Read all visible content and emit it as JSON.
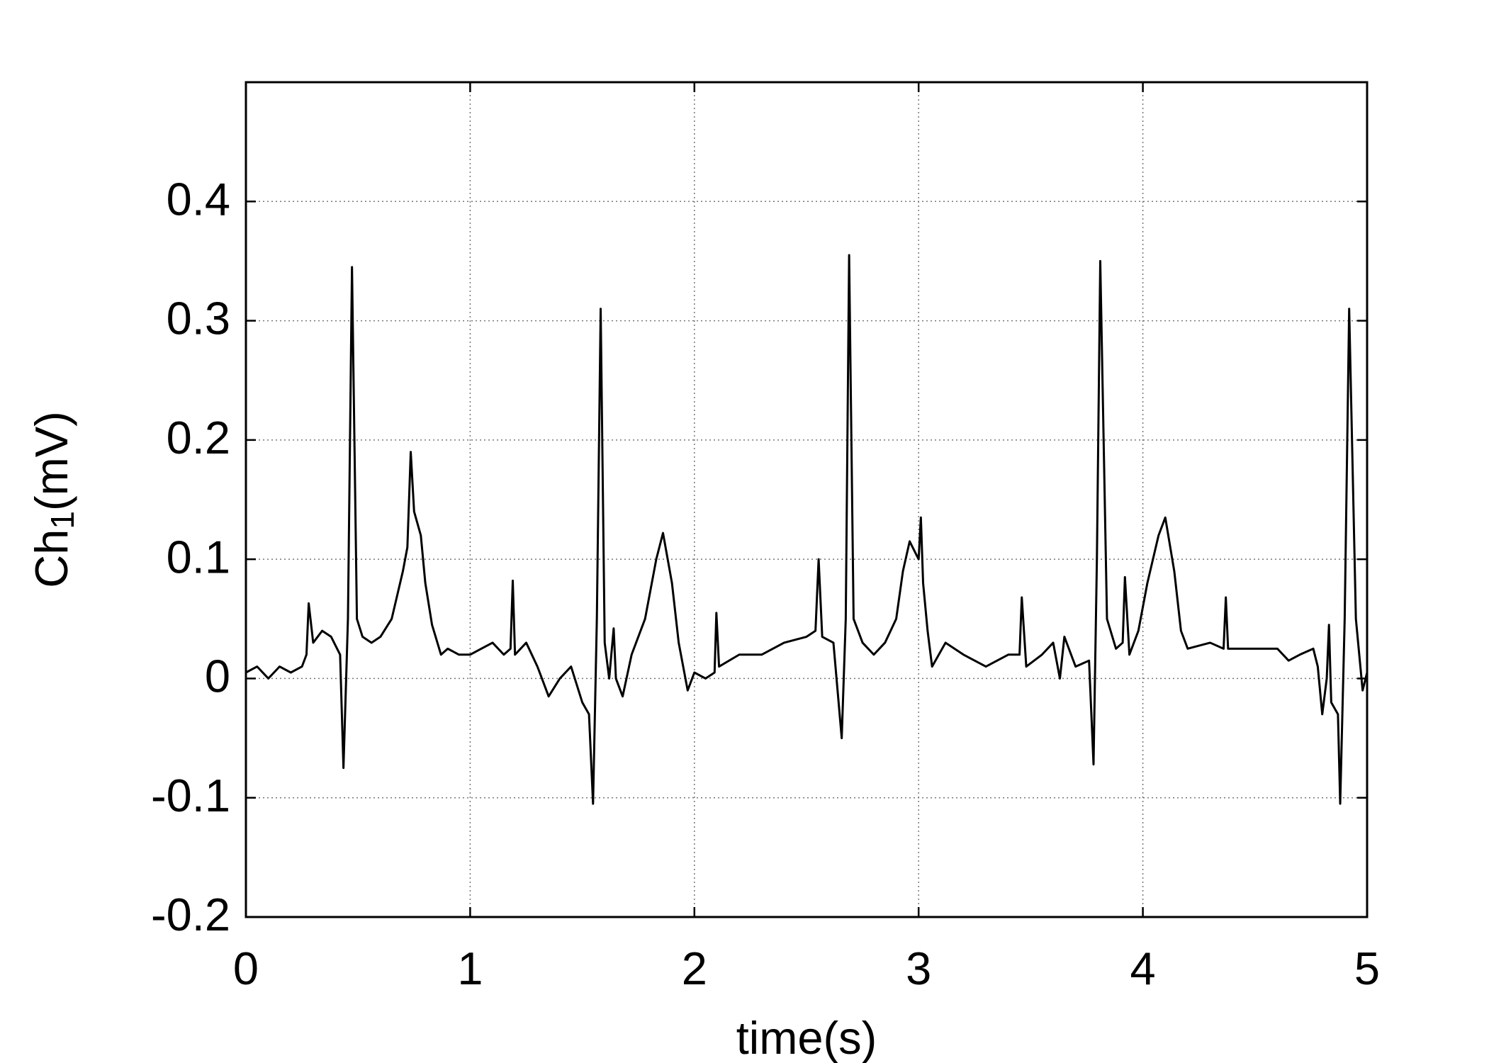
{
  "chart_data": {
    "type": "line",
    "xlabel": "time(s)",
    "ylabel": [
      "Ch",
      "1",
      "(mV)"
    ],
    "color": "#000000",
    "grid": true,
    "xlim": [
      0,
      5
    ],
    "xticks": [
      0,
      1,
      2,
      3,
      4,
      5
    ],
    "ylim": [
      -0.2,
      0.5
    ],
    "yticks": [
      -0.2,
      -0.1,
      0,
      0.1,
      0.2,
      0.3,
      0.4
    ],
    "x": [
      0,
      0.05,
      0.1,
      0.15,
      0.2,
      0.25,
      0.27,
      0.28,
      0.3,
      0.34,
      0.38,
      0.42,
      0.435,
      0.455,
      0.473,
      0.495,
      0.52,
      0.56,
      0.6,
      0.65,
      0.7,
      0.72,
      0.735,
      0.75,
      0.78,
      0.8,
      0.83,
      0.87,
      0.9,
      0.95,
      1.0,
      1.05,
      1.1,
      1.15,
      1.18,
      1.19,
      1.2,
      1.25,
      1.3,
      1.35,
      1.4,
      1.45,
      1.5,
      1.53,
      1.548,
      1.565,
      1.582,
      1.6,
      1.62,
      1.64,
      1.65,
      1.68,
      1.72,
      1.78,
      1.83,
      1.86,
      1.9,
      1.93,
      1.97,
      2.0,
      2.05,
      2.09,
      2.098,
      2.11,
      2.2,
      2.3,
      2.4,
      2.5,
      2.54,
      2.554,
      2.57,
      2.62,
      2.657,
      2.675,
      2.69,
      2.71,
      2.75,
      2.8,
      2.85,
      2.9,
      2.93,
      2.96,
      3.0,
      3.01,
      3.02,
      3.04,
      3.06,
      3.12,
      3.2,
      3.3,
      3.4,
      3.45,
      3.46,
      3.48,
      3.55,
      3.6,
      3.63,
      3.65,
      3.7,
      3.76,
      3.78,
      3.795,
      3.81,
      3.84,
      3.88,
      3.91,
      3.92,
      3.94,
      3.98,
      4.02,
      4.07,
      4.1,
      4.14,
      4.17,
      4.2,
      4.3,
      4.36,
      4.37,
      4.38,
      4.5,
      4.6,
      4.65,
      4.7,
      4.76,
      4.78,
      4.8,
      4.82,
      4.83,
      4.84,
      4.87,
      4.88,
      4.9,
      4.92,
      4.95,
      4.98,
      5.0
    ],
    "values": [
      0.005,
      0.01,
      0,
      0.01,
      0.005,
      0.01,
      0.02,
      0.063,
      0.03,
      0.04,
      0.035,
      0.02,
      -0.075,
      0.05,
      0.345,
      0.05,
      0.035,
      0.03,
      0.035,
      0.05,
      0.09,
      0.11,
      0.19,
      0.14,
      0.12,
      0.08,
      0.045,
      0.02,
      0.025,
      0.02,
      0.02,
      0.025,
      0.03,
      0.02,
      0.025,
      0.082,
      0.02,
      0.03,
      0.01,
      -0.015,
      0,
      0.01,
      -0.02,
      -0.03,
      -0.105,
      0.05,
      0.31,
      0.03,
      0,
      0.042,
      0,
      -0.015,
      0.02,
      0.05,
      0.1,
      0.122,
      0.08,
      0.03,
      -0.01,
      0.005,
      0,
      0.005,
      0.055,
      0.01,
      0.02,
      0.02,
      0.03,
      0.035,
      0.04,
      0.1,
      0.035,
      0.03,
      -0.05,
      0.05,
      0.355,
      0.05,
      0.03,
      0.02,
      0.03,
      0.05,
      0.09,
      0.115,
      0.1,
      0.135,
      0.08,
      0.04,
      0.01,
      0.03,
      0.02,
      0.01,
      0.02,
      0.02,
      0.068,
      0.01,
      0.02,
      0.03,
      0,
      0.035,
      0.01,
      0.015,
      -0.072,
      0.1,
      0.35,
      0.05,
      0.025,
      0.03,
      0.085,
      0.02,
      0.04,
      0.08,
      0.12,
      0.135,
      0.09,
      0.04,
      0.025,
      0.03,
      0.025,
      0.068,
      0.025,
      0.025,
      0.025,
      0.015,
      0.02,
      0.025,
      0.01,
      -0.03,
      0,
      0.045,
      -0.02,
      -0.03,
      -0.105,
      0.05,
      0.31,
      0.05,
      -0.01,
      0.005
    ]
  }
}
